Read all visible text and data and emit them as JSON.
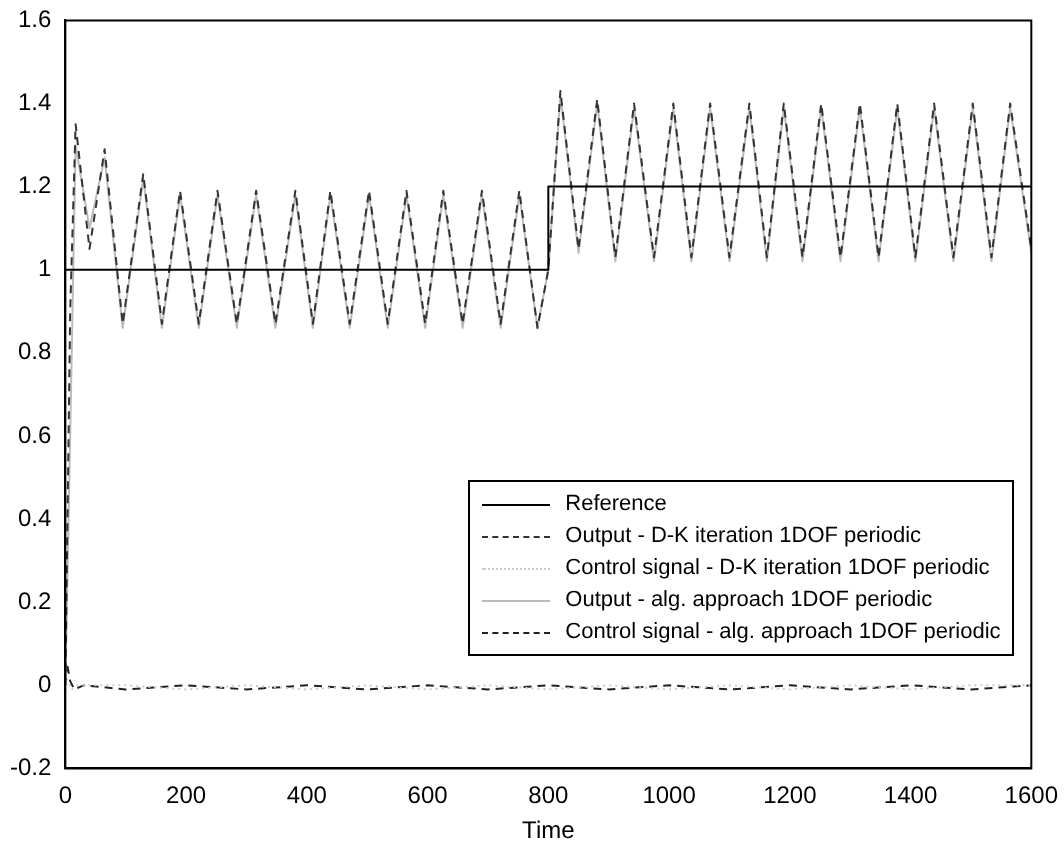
{
  "chart_data": {
    "type": "line",
    "xlabel": "Time",
    "xlim": [
      0,
      1600
    ],
    "xticks": [
      0,
      200,
      400,
      600,
      800,
      1000,
      1200,
      1400,
      1600
    ],
    "ylim": [
      -0.2,
      1.6
    ],
    "yticks": [
      -0.2,
      0,
      0.2,
      0.4,
      0.6,
      0.8,
      1,
      1.2,
      1.4,
      1.6
    ],
    "grid": false,
    "legend": "bottom right",
    "marker": "none",
    "series": [
      {
        "name": "Reference",
        "color": "#000000",
        "line_style": "solid",
        "x": [
          0,
          800,
          800,
          1600
        ],
        "values": [
          1,
          1,
          1.2,
          1.2
        ]
      },
      {
        "name": "Output - D-K iteration 1DOF periodic",
        "color": "#333333",
        "line_style": "dashed",
        "x": [
          0,
          8,
          17,
          40,
          65,
          95,
          129,
          160,
          190,
          221,
          252,
          284,
          316,
          348,
          381,
          410,
          439,
          471,
          503,
          534,
          565,
          596,
          626,
          658,
          690,
          721,
          752,
          782,
          800,
          820,
          850,
          881,
          911,
          942,
          975,
          1007,
          1037,
          1068,
          1100,
          1133,
          1162,
          1190,
          1221,
          1252,
          1284,
          1316,
          1347,
          1378,
          1408,
          1439,
          1471,
          1503,
          1534,
          1565,
          1600
        ],
        "values": [
          0,
          0.9,
          1.35,
          1.05,
          1.29,
          0.87,
          1.23,
          0.87,
          1.19,
          0.87,
          1.19,
          0.87,
          1.19,
          0.87,
          1.19,
          0.87,
          1.19,
          0.87,
          1.19,
          0.87,
          1.19,
          0.87,
          1.19,
          0.87,
          1.19,
          0.87,
          1.19,
          0.86,
          1.0,
          1.43,
          1.05,
          1.41,
          1.03,
          1.4,
          1.03,
          1.4,
          1.03,
          1.4,
          1.03,
          1.4,
          1.03,
          1.4,
          1.03,
          1.4,
          1.03,
          1.4,
          1.03,
          1.4,
          1.03,
          1.4,
          1.03,
          1.4,
          1.03,
          1.4,
          1.05
        ]
      },
      {
        "name": "Control signal - D-K iteration 1DOF periodic",
        "color": "#cccccc",
        "line_style": "dotted",
        "x": [
          0,
          4,
          10,
          20,
          100,
          200,
          300,
          400,
          500,
          600,
          700,
          800,
          900,
          1000,
          1100,
          1200,
          1300,
          1400,
          1500,
          1600
        ],
        "values": [
          0.03,
          0.01,
          -0.01,
          0,
          0,
          -0.01,
          0,
          -0.01,
          0,
          -0.01,
          0,
          -0.01,
          0,
          -0.01,
          0,
          -0.01,
          0,
          -0.01,
          0,
          0
        ]
      },
      {
        "name": "Output - alg. approach 1DOF periodic",
        "color": "#bbbbbb",
        "line_style": "solid",
        "x": [
          0,
          8,
          17,
          40,
          65,
          95,
          129,
          160,
          190,
          221,
          252,
          284,
          316,
          348,
          381,
          410,
          439,
          471,
          503,
          534,
          565,
          596,
          626,
          658,
          690,
          721,
          752,
          782,
          800,
          820,
          850,
          881,
          911,
          942,
          975,
          1007,
          1037,
          1068,
          1100,
          1133,
          1162,
          1190,
          1221,
          1252,
          1284,
          1316,
          1347,
          1378,
          1408,
          1439,
          1471,
          1503,
          1534,
          1565,
          1600
        ],
        "values": [
          0,
          0.6,
          1.3,
          1.1,
          1.27,
          0.86,
          1.22,
          0.86,
          1.18,
          0.86,
          1.18,
          0.86,
          1.18,
          0.86,
          1.18,
          0.86,
          1.18,
          0.86,
          1.18,
          0.86,
          1.18,
          0.86,
          1.18,
          0.86,
          1.18,
          0.86,
          1.18,
          0.86,
          1.0,
          1.42,
          1.04,
          1.4,
          1.02,
          1.39,
          1.02,
          1.39,
          1.02,
          1.39,
          1.02,
          1.39,
          1.02,
          1.39,
          1.02,
          1.39,
          1.02,
          1.39,
          1.02,
          1.39,
          1.02,
          1.39,
          1.02,
          1.39,
          1.02,
          1.39,
          1.04
        ]
      },
      {
        "name": "Control signal - alg. approach 1DOF periodic",
        "color": "#222222",
        "line_style": "dashed",
        "x": [
          0,
          3,
          8,
          15,
          30,
          100,
          200,
          300,
          400,
          500,
          600,
          700,
          800,
          900,
          1000,
          1100,
          1200,
          1300,
          1400,
          1500,
          1600
        ],
        "values": [
          0.02,
          0.05,
          0.01,
          -0.01,
          0,
          -0.01,
          0,
          -0.01,
          0,
          -0.01,
          0,
          -0.01,
          0,
          -0.01,
          0,
          -0.01,
          0,
          -0.01,
          0,
          -0.01,
          0
        ]
      }
    ]
  }
}
